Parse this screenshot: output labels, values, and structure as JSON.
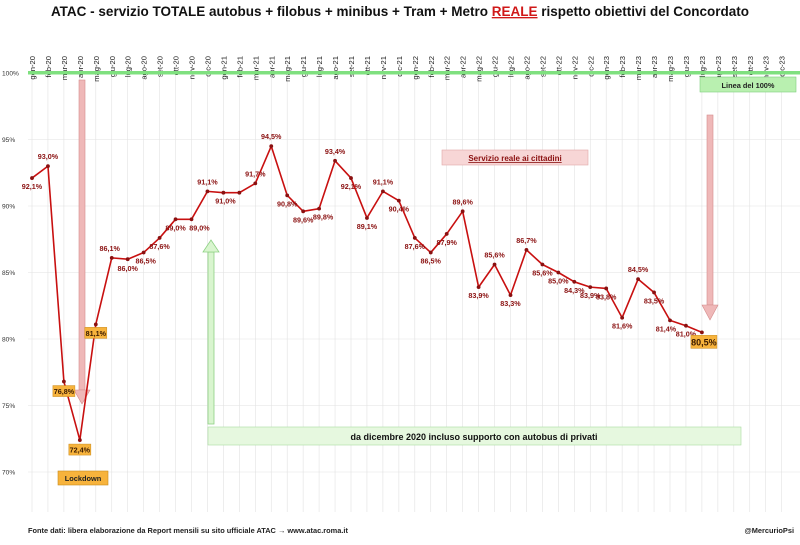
{
  "chart_data": {
    "type": "line",
    "title": "ATAC - servizio TOTALE autobus + filobus + minibus + Tram + Metro REALE rispetto obiettivi del Concordato",
    "title_parts": [
      "ATAC - servizio TOTALE autobus + filobus + minibus + Tram + Metro ",
      "REALE",
      " rispetto obiettivi del Concordato"
    ],
    "categories": [
      "gen-20",
      "feb-20",
      "mar-20",
      "apr-20",
      "mag-20",
      "giu-20",
      "lug-20",
      "ago-20",
      "set-20",
      "ott-20",
      "nov-20",
      "dic-20",
      "gen-21",
      "feb-21",
      "mar-21",
      "apr-21",
      "mag-21",
      "giu-21",
      "lug-21",
      "ago-21",
      "set-21",
      "ott-21",
      "nov-21",
      "dic-21",
      "gen-22",
      "feb-22",
      "mar-22",
      "apr-22",
      "mag-22",
      "giu-22",
      "lug-22",
      "ago-22",
      "set-22",
      "ott-22",
      "nov-22",
      "dic-22",
      "gen-23",
      "feb-23",
      "mar-23",
      "apr-23",
      "mag-23",
      "giu-23",
      "lug-23",
      "ago-23",
      "set-23",
      "ott-23",
      "nov-23",
      "dic-23"
    ],
    "series": [
      {
        "values": [
          92.1,
          93.0,
          76.8,
          72.4,
          81.1,
          86.1,
          86.0,
          86.5,
          87.6,
          89.0,
          89.0,
          91.1,
          91.0,
          91.0,
          91.7,
          94.5,
          90.8,
          89.6,
          89.8,
          93.4,
          92.1,
          89.1,
          91.1,
          90.4,
          87.6,
          86.5,
          87.9,
          89.6,
          83.9,
          85.6,
          83.3,
          86.7,
          85.6,
          85.0,
          84.3,
          83.9,
          83.8,
          81.6,
          84.5,
          83.5,
          81.4,
          81.0,
          80.5,
          null,
          null,
          null,
          null,
          null
        ],
        "color": "#c81010"
      }
    ],
    "data_labels": [
      "92,1%",
      "93,0%",
      "76,8%",
      "72,4%",
      "81,1%",
      "86,1%",
      "86,0%",
      "86,5%",
      "87,6%",
      "89,0%",
      "89,0%",
      "91,1%",
      "91,0%",
      "",
      "91,7%",
      "94,5%",
      "90,8%",
      "89,6%",
      "89,8%",
      "93,4%",
      "92,1%",
      "89,1%",
      "91,1%",
      "90,4%",
      "87,6%",
      "86,5%",
      "87,9%",
      "89,6%",
      "83,9%",
      "85,6%",
      "83,3%",
      "86,7%",
      "85,6%",
      "85,0%",
      "84,3%",
      "83,9%",
      "83,8%",
      "81,6%",
      "84,5%",
      "83,5%",
      "81,4%",
      "81,0%",
      "80,5%"
    ],
    "ylim": [
      66,
      100
    ],
    "yticks": [
      70,
      75,
      80,
      85,
      90,
      95,
      100
    ],
    "ytick_labels": [
      "70%",
      "75%",
      "80%",
      "85%",
      "90%",
      "95%",
      "100%"
    ],
    "reference_line": {
      "value": 100,
      "label": "Linea del 100%",
      "color": "#7fe07f"
    },
    "annotations": {
      "service_box": "Servizio reale ai cittadini",
      "support_box": "da dicembre 2020 incluso supporto con autobus di privati",
      "lockdown_tag": "Lockdown",
      "last_value_tag": "80,5%"
    },
    "footer_source": "Fonte dati:  libera elaborazione da Report mensili su sito ufficiale ATAC →  www.atac.roma.it",
    "footer_credit": "@MercurioPsi",
    "grid": true,
    "legend": "none"
  }
}
